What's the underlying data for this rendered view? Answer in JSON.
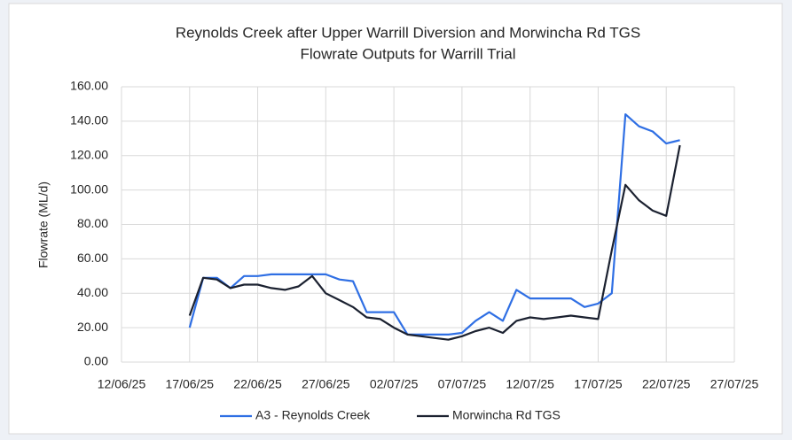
{
  "chart_data": {
    "type": "line",
    "title": [
      "Reynolds Creek after Upper Warrill Diversion and Morwincha Rd TGS",
      "Flowrate Outputs for Warrill Trial"
    ],
    "y_label": "Flowrate (ML/d)",
    "x": [
      "17/06/25",
      "18/06/25",
      "19/06/25",
      "20/06/25",
      "21/06/25",
      "22/06/25",
      "23/06/25",
      "24/06/25",
      "25/06/25",
      "26/06/25",
      "27/06/25",
      "28/06/25",
      "29/06/25",
      "30/06/25",
      "01/07/25",
      "02/07/25",
      "03/07/25",
      "04/07/25",
      "05/07/25",
      "06/07/25",
      "07/07/25",
      "08/07/25",
      "09/07/25",
      "10/07/25",
      "11/07/25",
      "12/07/25",
      "13/07/25",
      "14/07/25",
      "15/07/25",
      "16/07/25",
      "17/07/25",
      "18/07/25",
      "19/07/25",
      "20/07/25",
      "21/07/25",
      "22/07/25",
      "23/07/25"
    ],
    "series": [
      {
        "name": "A3 - Reynolds Creek",
        "color": "#2f6fe4",
        "values": [
          20,
          49,
          49,
          43,
          50,
          50,
          51,
          51,
          51,
          51,
          51,
          48,
          47,
          29,
          29,
          29,
          16,
          16,
          16,
          16,
          17,
          24,
          29,
          24,
          42,
          37,
          37,
          37,
          37,
          32,
          34,
          40,
          144,
          137,
          134,
          127,
          129
        ]
      },
      {
        "name": "Morwincha Rd TGS",
        "color": "#1b2130",
        "values": [
          27,
          49,
          48,
          43,
          45,
          45,
          43,
          42,
          44,
          50,
          40,
          36,
          32,
          26,
          25,
          20,
          16,
          15,
          14,
          13,
          15,
          18,
          20,
          17,
          24,
          26,
          25,
          26,
          27,
          26,
          25,
          65,
          103,
          94,
          88,
          85,
          126
        ]
      }
    ],
    "xlim": [
      "12/06/25",
      "27/07/25"
    ],
    "xticks": [
      "12/06/25",
      "17/06/25",
      "22/06/25",
      "27/06/25",
      "02/07/25",
      "07/07/25",
      "12/07/25",
      "17/07/25",
      "22/07/25",
      "27/07/25"
    ],
    "ylim": [
      0,
      160
    ],
    "yticks": [
      {
        "value": 0,
        "label": "0.00"
      },
      {
        "value": 20,
        "label": "20.00"
      },
      {
        "value": 40,
        "label": "40.00"
      },
      {
        "value": 60,
        "label": "60.00"
      },
      {
        "value": 80,
        "label": "80.00"
      },
      {
        "value": 100,
        "label": "100.00"
      },
      {
        "value": 120,
        "label": "120.00"
      },
      {
        "value": 140,
        "label": "140.00"
      },
      {
        "value": 160,
        "label": "160.00"
      }
    ],
    "grid": true,
    "legend": "bottom"
  }
}
